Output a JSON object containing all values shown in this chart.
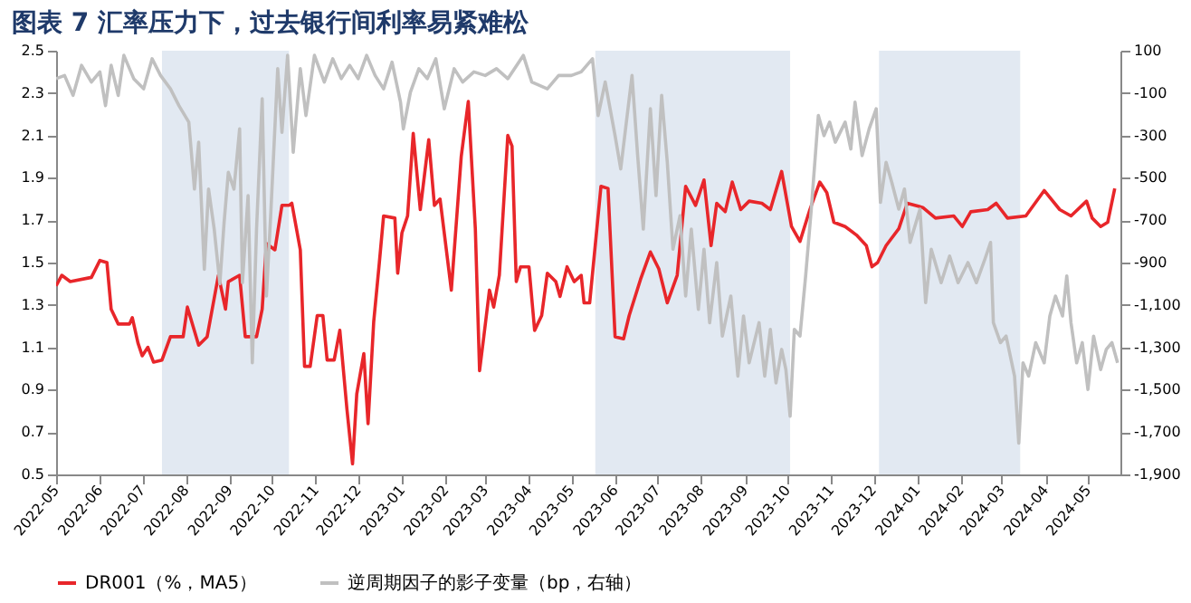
{
  "chart_data": {
    "type": "line",
    "title": "图表 7   汇率压力下，过去银行间利率易紧难松",
    "xlim": [
      "2022-05-01",
      "2024-05-24"
    ],
    "xticks": [
      "2022-05",
      "2022-06",
      "2022-07",
      "2022-08",
      "2022-09",
      "2022-10",
      "2022-11",
      "2022-12",
      "2023-01",
      "2023-02",
      "2023-03",
      "2023-04",
      "2023-05",
      "2023-06",
      "2023-07",
      "2023-08",
      "2023-09",
      "2023-10",
      "2023-11",
      "2023-12",
      "2024-01",
      "2024-02",
      "2024-03",
      "2024-04",
      "2024-05"
    ],
    "ylim": [
      0.5,
      2.5
    ],
    "yticks": [
      0.5,
      0.7,
      0.9,
      1.1,
      1.3,
      1.5,
      1.7,
      1.9,
      2.1,
      2.3,
      2.5
    ],
    "y2lim": [
      -1900,
      100
    ],
    "y2ticks": [
      100,
      -100,
      -300,
      -500,
      -700,
      -900,
      {
        "value": -1100,
        "label": "-1,100"
      },
      {
        "value": -1300,
        "label": "-1,300"
      },
      {
        "value": -1500,
        "label": "-1,500"
      },
      {
        "value": -1700,
        "label": "-1,700"
      },
      {
        "value": -1900,
        "label": "-1,900"
      }
    ],
    "legend": "bottom",
    "bands": [
      {
        "axis": "x",
        "from": "2022-07-15",
        "to": "2022-10-13",
        "color": "#dbe3ef"
      },
      {
        "axis": "x",
        "from": "2023-05-18",
        "to": "2023-10-03",
        "color": "#dbe3ef"
      },
      {
        "axis": "x",
        "from": "2023-12-05",
        "to": "2024-03-14",
        "color": "#dbe3ef"
      }
    ],
    "series": [
      {
        "name": "DR001（%，MA5）",
        "color": "#e8262a",
        "axis": "y",
        "x": [
          "2022-05-01",
          "2022-05-05",
          "2022-05-11",
          "2022-05-26",
          "2022-06-01",
          "2022-06-06",
          "2022-06-09",
          "2022-06-14",
          "2022-06-22",
          "2022-06-24",
          "2022-06-28",
          "2022-07-01",
          "2022-07-05",
          "2022-07-09",
          "2022-07-15",
          "2022-07-21",
          "2022-07-30",
          "2022-08-02",
          "2022-08-10",
          "2022-08-16",
          "2022-08-24",
          "2022-08-29",
          "2022-08-31",
          "2022-09-08",
          "2022-09-12",
          "2022-09-20",
          "2022-09-24",
          "2022-09-27",
          "2022-10-03",
          "2022-10-08",
          "2022-10-13",
          "2022-10-15",
          "2022-10-21",
          "2022-10-24",
          "2022-10-28",
          "2022-11-02",
          "2022-11-06",
          "2022-11-09",
          "2022-11-14",
          "2022-11-18",
          "2022-11-23",
          "2022-11-27",
          "2022-11-30",
          "2022-12-05",
          "2022-12-08",
          "2022-12-12",
          "2022-12-16",
          "2022-12-19",
          "2022-12-27",
          "2022-12-29",
          "2023-01-01",
          "2023-01-05",
          "2023-01-09",
          "2023-01-14",
          "2023-01-20",
          "2023-01-24",
          "2023-01-28",
          "2023-02-05",
          "2023-02-12",
          "2023-02-17",
          "2023-02-22",
          "2023-02-25",
          "2023-02-28",
          "2023-03-04",
          "2023-03-07",
          "2023-03-11",
          "2023-03-17",
          "2023-03-20",
          "2023-03-23",
          "2023-03-26",
          "2023-04-01",
          "2023-04-05",
          "2023-04-10",
          "2023-04-14",
          "2023-04-20",
          "2023-04-23",
          "2023-04-28",
          "2023-05-03",
          "2023-05-08",
          "2023-05-10",
          "2023-05-14",
          "2023-05-22",
          "2023-05-27",
          "2023-06-01",
          "2023-06-07",
          "2023-06-11",
          "2023-06-19",
          "2023-06-26",
          "2023-07-02",
          "2023-07-08",
          "2023-07-15",
          "2023-07-21",
          "2023-07-28",
          "2023-08-03",
          "2023-08-08",
          "2023-08-12",
          "2023-08-18",
          "2023-08-23",
          "2023-08-29",
          "2023-09-04",
          "2023-09-13",
          "2023-09-19",
          "2023-09-27",
          "2023-10-04",
          "2023-10-10",
          "2023-10-17",
          "2023-10-24",
          "2023-10-29",
          "2023-11-03",
          "2023-11-11",
          "2023-11-19",
          "2023-11-26",
          "2023-11-30",
          "2023-12-04",
          "2023-12-10",
          "2023-12-19",
          "2023-12-25",
          "2024-01-05",
          "2024-01-14",
          "2024-01-27",
          "2024-02-02",
          "2024-02-08",
          "2024-02-20",
          "2024-02-26",
          "2024-03-05",
          "2024-03-18",
          "2024-03-31",
          "2024-04-11",
          "2024-04-19",
          "2024-04-30",
          "2024-05-04",
          "2024-05-10",
          "2024-05-15",
          "2024-05-20"
        ],
        "values": [
          1.39,
          1.44,
          1.41,
          1.43,
          1.51,
          1.5,
          1.28,
          1.21,
          1.21,
          1.24,
          1.12,
          1.06,
          1.1,
          1.03,
          1.04,
          1.15,
          1.15,
          1.29,
          1.11,
          1.15,
          1.44,
          1.28,
          1.41,
          1.44,
          1.15,
          1.15,
          1.28,
          1.59,
          1.56,
          1.77,
          1.77,
          1.78,
          1.56,
          1.01,
          1.01,
          1.25,
          1.25,
          1.04,
          1.04,
          1.18,
          0.81,
          0.55,
          0.88,
          1.07,
          0.74,
          1.22,
          1.5,
          1.72,
          1.71,
          1.45,
          1.64,
          1.72,
          2.11,
          1.75,
          2.08,
          1.77,
          1.8,
          1.37,
          2.0,
          2.26,
          1.66,
          0.99,
          1.15,
          1.37,
          1.29,
          1.44,
          2.1,
          2.05,
          1.41,
          1.48,
          1.48,
          1.18,
          1.25,
          1.45,
          1.41,
          1.34,
          1.48,
          1.41,
          1.44,
          1.31,
          1.31,
          1.86,
          1.85,
          1.15,
          1.14,
          1.25,
          1.42,
          1.55,
          1.47,
          1.31,
          1.44,
          1.86,
          1.77,
          1.89,
          1.58,
          1.78,
          1.74,
          1.88,
          1.75,
          1.79,
          1.78,
          1.75,
          1.93,
          1.67,
          1.6,
          1.75,
          1.88,
          1.83,
          1.69,
          1.67,
          1.63,
          1.58,
          1.48,
          1.5,
          1.58,
          1.66,
          1.78,
          1.76,
          1.71,
          1.72,
          1.67,
          1.74,
          1.75,
          1.78,
          1.71,
          1.72,
          1.84,
          1.75,
          1.72,
          1.79,
          1.71,
          1.67,
          1.69,
          1.85
        ]
      },
      {
        "name": "逆周期因子的影子变量（bp，右轴）",
        "color": "#c0c0c0",
        "axis": "y2",
        "x": [
          "2022-05-01",
          "2022-05-07",
          "2022-05-13",
          "2022-05-19",
          "2022-05-26",
          "2022-06-01",
          "2022-06-05",
          "2022-06-09",
          "2022-06-14",
          "2022-06-18",
          "2022-06-25",
          "2022-07-02",
          "2022-07-08",
          "2022-07-14",
          "2022-07-21",
          "2022-07-27",
          "2022-08-03",
          "2022-08-07",
          "2022-08-10",
          "2022-08-14",
          "2022-08-17",
          "2022-08-21",
          "2022-08-25",
          "2022-08-28",
          "2022-08-31",
          "2022-09-04",
          "2022-09-08",
          "2022-09-10",
          "2022-09-14",
          "2022-09-17",
          "2022-09-20",
          "2022-09-24",
          "2022-09-27",
          "2022-09-30",
          "2022-10-05",
          "2022-10-08",
          "2022-10-12",
          "2022-10-16",
          "2022-10-21",
          "2022-10-25",
          "2022-10-31",
          "2022-11-07",
          "2022-11-13",
          "2022-11-19",
          "2022-11-25",
          "2022-12-01",
          "2022-12-07",
          "2022-12-13",
          "2022-12-19",
          "2022-12-25",
          "2022-12-31",
          "2023-01-02",
          "2023-01-07",
          "2023-01-13",
          "2023-01-19",
          "2023-01-25",
          "2023-01-31",
          "2023-02-07",
          "2023-02-13",
          "2023-02-21",
          "2023-03-01",
          "2023-03-09",
          "2023-03-17",
          "2023-03-28",
          "2023-04-03",
          "2023-04-14",
          "2023-04-22",
          "2023-05-01",
          "2023-05-08",
          "2023-05-16",
          "2023-05-20",
          "2023-05-25",
          "2023-06-01",
          "2023-06-05",
          "2023-06-09",
          "2023-06-13",
          "2023-06-17",
          "2023-06-21",
          "2023-06-26",
          "2023-06-30",
          "2023-07-04",
          "2023-07-08",
          "2023-07-12",
          "2023-07-17",
          "2023-07-21",
          "2023-07-25",
          "2023-07-30",
          "2023-08-03",
          "2023-08-07",
          "2023-08-12",
          "2023-08-16",
          "2023-08-22",
          "2023-08-27",
          "2023-08-31",
          "2023-09-04",
          "2023-09-11",
          "2023-09-15",
          "2023-09-19",
          "2023-09-23",
          "2023-09-27",
          "2023-09-30",
          "2023-10-03",
          "2023-10-06",
          "2023-10-10",
          "2023-10-14",
          "2023-10-18",
          "2023-10-23",
          "2023-10-27",
          "2023-10-31",
          "2023-11-04",
          "2023-11-11",
          "2023-11-15",
          "2023-11-18",
          "2023-11-23",
          "2023-11-28",
          "2023-12-03",
          "2023-12-06",
          "2023-12-10",
          "2023-12-14",
          "2023-12-19",
          "2023-12-23",
          "2023-12-27",
          "2024-01-03",
          "2024-01-07",
          "2024-01-11",
          "2024-01-18",
          "2024-01-24",
          "2024-01-30",
          "2024-02-06",
          "2024-02-12",
          "2024-02-18",
          "2024-02-22",
          "2024-02-24",
          "2024-02-29",
          "2024-03-04",
          "2024-03-10",
          "2024-03-13",
          "2024-03-16",
          "2024-03-20",
          "2024-03-25",
          "2024-03-31",
          "2024-04-04",
          "2024-04-08",
          "2024-04-13",
          "2024-04-16",
          "2024-04-19",
          "2024-04-23",
          "2024-04-27",
          "2024-05-01",
          "2024-05-05",
          "2024-05-10",
          "2024-05-14",
          "2024-05-18",
          "2024-05-22"
        ],
        "values": [
          -32,
          -17,
          -111,
          31,
          -48,
          0,
          -159,
          31,
          -111,
          78,
          -32,
          -80,
          62,
          -17,
          -80,
          -159,
          -237,
          -553,
          -332,
          -932,
          -553,
          -742,
          -1000,
          -711,
          -474,
          -553,
          -269,
          -995,
          -584,
          -1373,
          -742,
          -127,
          -1058,
          -679,
          15,
          -285,
          78,
          -379,
          15,
          -206,
          78,
          -48,
          62,
          -32,
          31,
          -32,
          78,
          -17,
          -80,
          46,
          -143,
          -269,
          -96,
          15,
          -32,
          62,
          -174,
          15,
          -48,
          0,
          -17,
          15,
          -32,
          78,
          -48,
          -80,
          -17,
          -17,
          0,
          62,
          -206,
          -48,
          -301,
          -458,
          -237,
          -17,
          -395,
          -742,
          -174,
          -584,
          -111,
          -427,
          -837,
          -679,
          -1058,
          -742,
          -1121,
          -837,
          -1184,
          -900,
          -1247,
          -1058,
          -1436,
          -1152,
          -1373,
          -1184,
          -1436,
          -1215,
          -1468,
          -1310,
          -1405,
          -1625,
          -1215,
          -1247,
          -963,
          -648,
          -206,
          -301,
          -237,
          -332,
          -237,
          -364,
          -143,
          -395,
          -269,
          -174,
          -616,
          -427,
          -521,
          -648,
          -553,
          -805,
          -648,
          -1089,
          -837,
          -995,
          -869,
          -995,
          -900,
          -995,
          -884,
          -805,
          -1184,
          -1278,
          -1247,
          -1436,
          -1752,
          -1373,
          -1436,
          -1278,
          -1373,
          -1152,
          -1058,
          -1152,
          -963,
          -1184,
          -1373,
          -1278,
          -1499,
          -1247,
          -1405,
          -1310,
          -1278,
          -1373
        ]
      }
    ]
  }
}
